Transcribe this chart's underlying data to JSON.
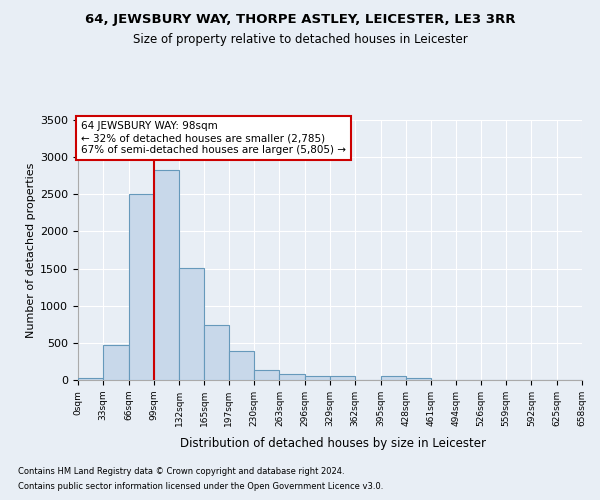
{
  "title": "64, JEWSBURY WAY, THORPE ASTLEY, LEICESTER, LE3 3RR",
  "subtitle": "Size of property relative to detached houses in Leicester",
  "xlabel": "Distribution of detached houses by size in Leicester",
  "ylabel": "Number of detached properties",
  "bar_color": "#c8d8ea",
  "bar_edge_color": "#6699bb",
  "bin_edges": [
    0,
    33,
    66,
    99,
    132,
    165,
    197,
    230,
    263,
    296,
    329,
    362,
    395,
    428,
    461,
    494,
    526,
    559,
    592,
    625,
    658
  ],
  "bar_values": [
    25,
    470,
    2500,
    2830,
    1510,
    740,
    390,
    140,
    75,
    55,
    55,
    0,
    55,
    30,
    0,
    0,
    0,
    0,
    0,
    0
  ],
  "tick_labels": [
    "0sqm",
    "33sqm",
    "66sqm",
    "99sqm",
    "132sqm",
    "165sqm",
    "197sqm",
    "230sqm",
    "263sqm",
    "296sqm",
    "329sqm",
    "362sqm",
    "395sqm",
    "428sqm",
    "461sqm",
    "494sqm",
    "526sqm",
    "559sqm",
    "592sqm",
    "625sqm",
    "658sqm"
  ],
  "red_line_x": 99,
  "annotation_line1": "64 JEWSBURY WAY: 98sqm",
  "annotation_line2": "← 32% of detached houses are smaller (2,785)",
  "annotation_line3": "67% of semi-detached houses are larger (5,805) →",
  "annotation_box_color": "#cc0000",
  "ylim_max": 3500,
  "yticks": [
    0,
    500,
    1000,
    1500,
    2000,
    2500,
    3000,
    3500
  ],
  "footer_line1": "Contains HM Land Registry data © Crown copyright and database right 2024.",
  "footer_line2": "Contains public sector information licensed under the Open Government Licence v3.0.",
  "bg_color": "#e8eef5"
}
